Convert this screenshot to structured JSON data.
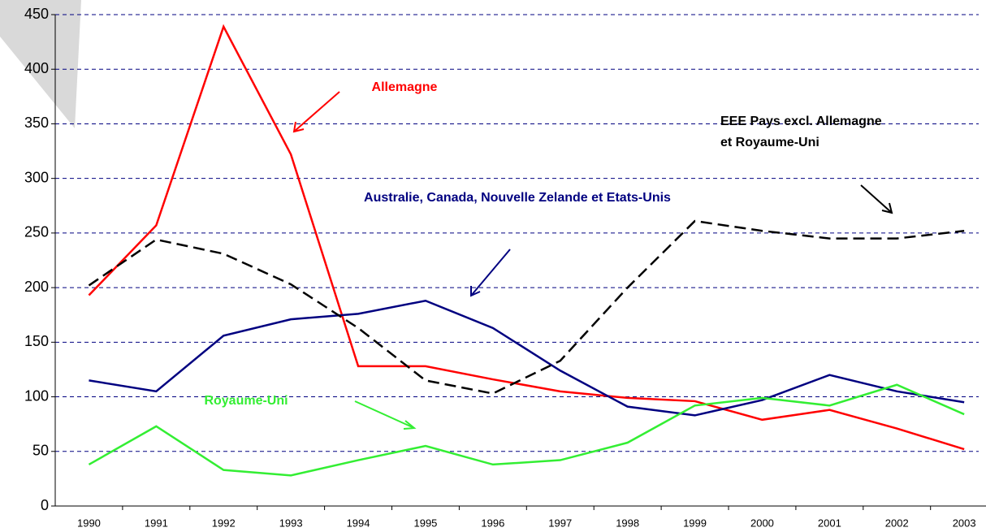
{
  "chart_data": {
    "type": "line",
    "categories": [
      "1990",
      "1991",
      "1992",
      "1993",
      "1994",
      "1995",
      "1996",
      "1997",
      "1998",
      "1999",
      "2000",
      "2001",
      "2002",
      "2003"
    ],
    "series": [
      {
        "name": "Allemagne",
        "color": "#ff0000",
        "dashed": false,
        "values": [
          193,
          257,
          439,
          322,
          128,
          128,
          116,
          105,
          99,
          96,
          79,
          88,
          71,
          52
        ]
      },
      {
        "name": "Australie, Canada, Nouvelle Zelande et Etats-Unis",
        "color": "#000080",
        "dashed": false,
        "values": [
          115,
          105,
          156,
          171,
          176,
          188,
          163,
          124,
          91,
          83,
          97,
          120,
          105,
          95
        ]
      },
      {
        "name": "Royaume-Uni",
        "color": "#33ee33",
        "dashed": false,
        "values": [
          38,
          73,
          33,
          28,
          42,
          55,
          38,
          42,
          58,
          92,
          99,
          92,
          111,
          84
        ]
      },
      {
        "name": "EEE Pays excl. Allemagne et Royaume-Uni",
        "color": "#000000",
        "dashed": true,
        "values": [
          202,
          244,
          231,
          203,
          163,
          115,
          103,
          133,
          200,
          261,
          252,
          245,
          245,
          252
        ]
      }
    ],
    "ylim": [
      0,
      450
    ],
    "yticks": [
      0,
      50,
      100,
      150,
      200,
      250,
      300,
      350,
      400,
      450
    ],
    "grid": true
  }
}
